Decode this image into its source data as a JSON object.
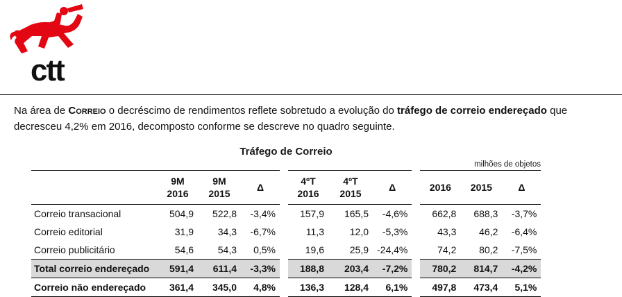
{
  "logo": {
    "brand": "ctt",
    "color": "#e30613"
  },
  "intro": {
    "part1": "Na área de ",
    "correio_word": "Correio",
    "part2": " o decréscimo de rendimentos reflete sobretudo a evolução do ",
    "bold_phrase": "tráfego de correio endereçado",
    "part3": " que decresceu 4,2% em 2016, decomposto conforme se descreve no quadro seguinte."
  },
  "table": {
    "title": "Tráfego de Correio",
    "units_note": "milhões de objetos",
    "headers": [
      "",
      "9M 2016",
      "9M 2015",
      "Δ",
      "4ºT\n2016",
      "4ºT\n2015",
      "Δ",
      "2016",
      "2015",
      "Δ"
    ],
    "rows": [
      {
        "label": "Correio transacional",
        "values": [
          "504,9",
          "522,8",
          "-3,4%",
          "157,9",
          "165,5",
          "-4,6%",
          "662,8",
          "688,3",
          "-3,7%"
        ],
        "style": "normal"
      },
      {
        "label": "Correio editorial",
        "values": [
          "31,9",
          "34,3",
          "-6,7%",
          "11,3",
          "12,0",
          "-5,3%",
          "43,3",
          "46,2",
          "-6,4%"
        ],
        "style": "normal"
      },
      {
        "label": "Correio publicitário",
        "values": [
          "54,6",
          "54,3",
          "0,5%",
          "19,6",
          "25,9",
          "-24,4%",
          "74,2",
          "80,2",
          "-7,5%"
        ],
        "style": "normal"
      },
      {
        "label": "Total correio endereçado",
        "values": [
          "591,4",
          "611,4",
          "-3,3%",
          "188,8",
          "203,4",
          "-7,2%",
          "780,2",
          "814,7",
          "-4,2%"
        ],
        "style": "total"
      },
      {
        "label": "Correio não endereçado",
        "values": [
          "361,4",
          "345,0",
          "4,8%",
          "136,3",
          "128,4",
          "6,1%",
          "497,8",
          "473,4",
          "5,1%"
        ],
        "style": "bold"
      }
    ]
  }
}
